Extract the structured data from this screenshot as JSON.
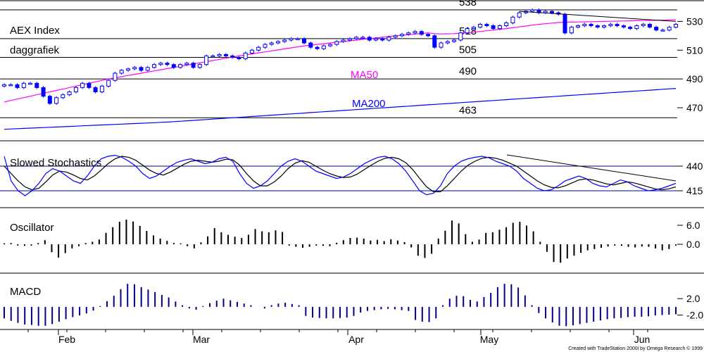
{
  "chart_data": {
    "type": "stock-chart",
    "colors": {
      "ma50": "#ff00ff",
      "ma200": "#0000ff",
      "up_candle": "#ffffff",
      "down_candle": "#0000ff",
      "candle_outline": "#0000ff",
      "stoch_k": "#0000ff",
      "stoch_d": "#000000",
      "oscillator_bars": "#000000",
      "macd_bars": "#00008b",
      "grid_lines": "#000000"
    },
    "x_labels": [
      "Feb",
      "Mar",
      "Apr",
      "May",
      "Jun"
    ],
    "credit": "Created with TradeStation 2000i by Omega Research © 1999",
    "price_panel": {
      "titles": [
        "AEX Index",
        "daggrafiek"
      ],
      "y_ticks": [
        530,
        510,
        490,
        470
      ],
      "y_range": [
        447,
        539
      ],
      "levels": [
        {
          "value": 538,
          "label": "538"
        },
        {
          "value": 518,
          "label": "518"
        },
        {
          "value": 505,
          "label": "505"
        },
        {
          "value": 490,
          "label": "490"
        },
        {
          "value": 463,
          "label": "463"
        }
      ],
      "ma_labels": {
        "ma50": "MA50",
        "ma200": "MA200"
      },
      "close": [
        486,
        486,
        484,
        487,
        487,
        484,
        478,
        473,
        477,
        479,
        481,
        484,
        487,
        484,
        481,
        485,
        489,
        494,
        496,
        497,
        498,
        496,
        498,
        500,
        501,
        500,
        498,
        500,
        501,
        498,
        500,
        506,
        506,
        507,
        506,
        505,
        504,
        508,
        510,
        512,
        514,
        515,
        516,
        517,
        518,
        518,
        515,
        512,
        511,
        513,
        514,
        516,
        517,
        518,
        519,
        519,
        517,
        518,
        517,
        519,
        520,
        521,
        522,
        523,
        521,
        520,
        512,
        515,
        516,
        517,
        522,
        525,
        526,
        528,
        527,
        525,
        527,
        529,
        533,
        536,
        537,
        538,
        536,
        537,
        536,
        535,
        522,
        526,
        527,
        528,
        527,
        526,
        527,
        528,
        527,
        526,
        525,
        527,
        528,
        526,
        524,
        524,
        526,
        528
      ],
      "ma50": [
        474,
        475,
        476,
        477,
        478,
        479,
        480,
        481,
        482,
        483,
        484,
        485,
        486,
        487,
        488,
        489,
        490,
        490.8,
        491.6,
        492.4,
        493.2,
        494,
        494.8,
        495.6,
        496.4,
        497.2,
        498,
        498.8,
        499.6,
        500.4,
        501.2,
        502,
        502.8,
        503.6,
        504.4,
        505.2,
        506,
        506.7,
        507.4,
        508.1,
        508.8,
        509.5,
        510.2,
        510.9,
        511.6,
        512.3,
        513,
        513.5,
        514,
        514.5,
        515,
        515.5,
        516,
        516.5,
        517,
        517.5,
        518,
        518.5,
        519,
        519.5,
        520,
        520.4,
        520.8,
        521.2,
        521.6,
        522,
        521.5,
        521.3,
        521.4,
        521.5,
        521.8,
        522,
        522.5,
        523,
        523.5,
        524,
        524.5,
        525,
        525.6,
        526.2,
        526.8,
        527.4,
        528,
        528.4,
        528.8,
        529.2,
        529.4,
        529.5,
        529.6,
        529.7,
        529.8,
        529.9,
        530,
        530.1,
        530.2,
        530.3,
        530.4,
        530.5,
        530.6,
        530.7,
        530.8,
        530.9,
        531,
        531.1
      ],
      "ma200": [
        455,
        455.2,
        455.4,
        455.6,
        455.8,
        456,
        456.2,
        456.4,
        456.6,
        456.8,
        457,
        457.2,
        457.4,
        457.6,
        457.8,
        458,
        458.2,
        458.4,
        458.6,
        458.8,
        459,
        459.2,
        459.4,
        459.6,
        459.8,
        460,
        460.3,
        460.6,
        460.9,
        461.2,
        461.5,
        461.8,
        462.1,
        462.4,
        462.7,
        463,
        463.3,
        463.6,
        463.9,
        464.2,
        464.5,
        464.8,
        465.1,
        465.4,
        465.7,
        466,
        466.3,
        466.6,
        466.9,
        467.2,
        467.5,
        467.8,
        468.1,
        468.4,
        468.7,
        469,
        469.3,
        469.6,
        469.9,
        470.2,
        470.5,
        470.8,
        471.1,
        471.4,
        471.7,
        472,
        472.3,
        472.6,
        472.9,
        473.2,
        473.5,
        473.8,
        474.1,
        474.4,
        474.7,
        475,
        475.3,
        475.6,
        475.9,
        476.2,
        476.5,
        476.8,
        477.1,
        477.4,
        477.7,
        478,
        478.3,
        478.6,
        478.9,
        479.2,
        479.5,
        479.8,
        480.1,
        480.4,
        480.7,
        481,
        481.3,
        481.6,
        481.9,
        482.2,
        482.5,
        482.8,
        483.1,
        483.4
      ],
      "trendline": {
        "from": [
          79,
          537
        ],
        "to": [
          103,
          530
        ]
      }
    },
    "stochastics_panel": {
      "title": "Slowed Stochastics",
      "y_ticks": [
        440,
        415
      ],
      "y_range": [
        405,
        455
      ],
      "levels": [
        440,
        415
      ],
      "k": [
        90,
        40,
        20,
        10,
        20,
        35,
        55,
        65,
        60,
        50,
        40,
        35,
        50,
        70,
        85,
        90,
        92,
        88,
        80,
        70,
        55,
        45,
        50,
        60,
        70,
        78,
        82,
        85,
        80,
        75,
        78,
        85,
        88,
        80,
        55,
        35,
        25,
        30,
        40,
        55,
        70,
        80,
        85,
        80,
        70,
        60,
        55,
        50,
        45,
        48,
        55,
        65,
        75,
        82,
        88,
        90,
        85,
        75,
        60,
        40,
        20,
        12,
        15,
        30,
        55,
        70,
        80,
        85,
        88,
        90,
        87,
        80,
        75,
        70,
        60,
        45,
        35,
        25,
        20,
        22,
        30,
        40,
        45,
        50,
        45,
        35,
        30,
        28,
        35,
        42,
        38,
        30,
        25,
        20,
        22,
        25,
        30,
        35
      ],
      "d": [
        70,
        55,
        40,
        28,
        22,
        25,
        38,
        52,
        60,
        58,
        52,
        45,
        42,
        50,
        62,
        75,
        85,
        90,
        88,
        82,
        72,
        62,
        55,
        52,
        58,
        66,
        74,
        80,
        82,
        80,
        78,
        80,
        84,
        83,
        72,
        55,
        40,
        30,
        30,
        38,
        50,
        65,
        76,
        81,
        78,
        70,
        62,
        55,
        50,
        47,
        48,
        54,
        63,
        72,
        80,
        86,
        88,
        85,
        77,
        63,
        45,
        28,
        18,
        18,
        30,
        45,
        60,
        72,
        80,
        86,
        88,
        86,
        82,
        76,
        70,
        60,
        50,
        40,
        32,
        27,
        26,
        30,
        36,
        42,
        44,
        42,
        38,
        34,
        32,
        35,
        38,
        36,
        32,
        28,
        24,
        22,
        24,
        28
      ]
    },
    "oscillator_panel": {
      "title": "Oscillator",
      "y_ticks": [
        6.0,
        0.0
      ],
      "y_tick_labels": [
        "6.0",
        "0.0"
      ],
      "y_range": [
        -8,
        10
      ],
      "values": [
        0.3,
        0.4,
        -0.4,
        -0.5,
        -0.4,
        0.4,
        1.3,
        -2.5,
        -4.2,
        -2.8,
        -1.3,
        -0.6,
        0.4,
        0.8,
        1.5,
        3.6,
        5.4,
        7.1,
        7.8,
        7.2,
        5.8,
        4.2,
        2.8,
        1.8,
        1.1,
        0.4,
        0.3,
        -0.6,
        -1.3,
        0.6,
        2.5,
        5.1,
        3.8,
        3.0,
        2.4,
        2.0,
        3.0,
        4.8,
        4.1,
        3.8,
        4.4,
        3.9,
        -0.4,
        -0.8,
        -1.1,
        -0.8,
        -0.4,
        -0.5,
        -0.6,
        0.5,
        1.3,
        2.0,
        2.1,
        1.8,
        1.2,
        1.4,
        1.0,
        1.6,
        1.2,
        0.7,
        -1.0,
        -3.6,
        -4.3,
        -3.0,
        1.8,
        4.3,
        7.5,
        6.6,
        3.2,
        0.8,
        1.5,
        3.6,
        3.8,
        4.6,
        5.4,
        6.8,
        7.1,
        5.9,
        4.1,
        0.8,
        -2.4,
        -5.6,
        -5.8,
        -4.5,
        -3.6,
        -2.7,
        -1.9,
        -1.5,
        -1.1,
        -0.7,
        -0.4,
        -0.5,
        -0.8,
        -1.0,
        -0.7,
        -0.8,
        -1.3,
        -1.9,
        -1.5,
        -0.4
      ],
      "bar_x_index_offset": 0
    },
    "macd_panel": {
      "title": "MACD",
      "y_ticks": [
        2.0,
        -2.0
      ],
      "y_tick_labels": [
        "2.0",
        "-2.0"
      ],
      "y_range": [
        -5.5,
        7
      ],
      "values": [
        -2.8,
        -3.4,
        -3.9,
        -4.3,
        -4.4,
        -4.6,
        -4.6,
        -4.2,
        -3.6,
        -3.0,
        -2.5,
        -2.1,
        -1.6,
        -0.9,
        0.2,
        1.4,
        2.7,
        4.3,
        5.6,
        5.5,
        4.8,
        4.2,
        3.6,
        2.9,
        2.3,
        1.3,
        0.4,
        -0.4,
        -0.7,
        0.2,
        0.9,
        1.5,
        2.0,
        1.6,
        1.2,
        0.8,
        0.4,
        0.0,
        -0.4,
        0.4,
        0.8,
        1.0,
        0.7,
        0.4,
        -2.2,
        -2.6,
        -2.7,
        -2.8,
        -2.8,
        -2.7,
        -2.6,
        -2.2,
        -1.4,
        -1.0,
        -0.8,
        -0.6,
        -0.5,
        -0.6,
        -0.8,
        -1.0,
        -3.2,
        -3.6,
        -3.7,
        -2.8,
        0.4,
        2.0,
        2.7,
        2.6,
        1.7,
        1.3,
        2.4,
        3.4,
        4.8,
        5.6,
        5.5,
        4.7,
        2.8,
        0.4,
        -1.5,
        -2.8,
        -3.8,
        -4.6,
        -4.7,
        -4.5,
        -4.2,
        -3.9,
        -3.6,
        -3.3,
        -3.0,
        -2.8,
        -2.7,
        -2.5,
        -2.4,
        -2.4,
        -2.3,
        -2.1,
        -2.0,
        -1.9,
        -1.8
      ],
      "bar_x_index_offset": 0
    }
  }
}
